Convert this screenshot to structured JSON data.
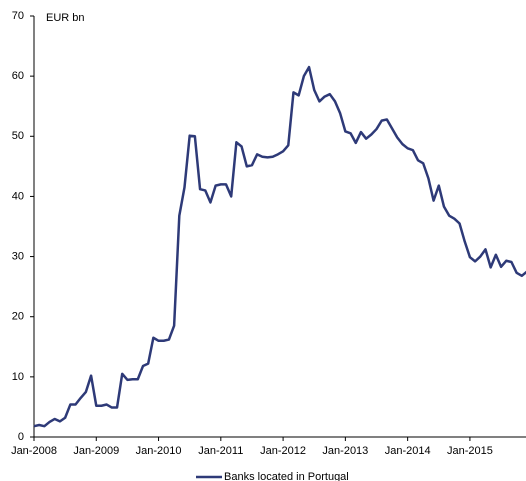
{
  "chart_data": {
    "type": "line",
    "y_label": "EUR bn",
    "categories": [
      "Jan-2008",
      null,
      null,
      null,
      null,
      null,
      null,
      null,
      null,
      null,
      null,
      null,
      "Jan-2009",
      null,
      null,
      null,
      null,
      null,
      null,
      null,
      null,
      null,
      null,
      null,
      "Jan-2010",
      null,
      null,
      null,
      null,
      null,
      null,
      null,
      null,
      null,
      null,
      null,
      "Jan-2011",
      null,
      null,
      null,
      null,
      null,
      null,
      null,
      null,
      null,
      null,
      null,
      "Jan-2012",
      null,
      null,
      null,
      null,
      null,
      null,
      null,
      null,
      null,
      null,
      null,
      "Jan-2013",
      null,
      null,
      null,
      null,
      null,
      null,
      null,
      null,
      null,
      null,
      null,
      "Jan-2014",
      null,
      null,
      null,
      null,
      null,
      null,
      null,
      null,
      null,
      null,
      null,
      "Jan-2015",
      null,
      null,
      null,
      null,
      null,
      null,
      null,
      null,
      null,
      null,
      null
    ],
    "series": [
      {
        "name": "Banks located in Portugal",
        "color": "#2e3a78",
        "values": [
          1.8,
          2.0,
          1.8,
          2.5,
          3.0,
          2.6,
          3.2,
          5.4,
          5.4,
          6.5,
          7.5,
          10.2,
          5.2,
          5.2,
          5.4,
          4.9,
          4.9,
          10.5,
          9.5,
          9.6,
          9.6,
          11.8,
          12.2,
          16.5,
          16.0,
          16.0,
          16.2,
          18.5,
          36.8,
          41.5,
          50.1,
          50.0,
          41.2,
          41.0,
          39.0,
          41.8,
          42.0,
          42.0,
          40.0,
          49.0,
          48.3,
          45.0,
          45.2,
          47.0,
          46.6,
          46.5,
          46.6,
          47.0,
          47.5,
          48.5,
          57.3,
          56.8,
          60.0,
          61.5,
          57.7,
          55.8,
          56.6,
          57.0,
          55.8,
          53.8,
          50.8,
          50.5,
          48.9,
          50.7,
          49.6,
          50.3,
          51.2,
          52.6,
          52.8,
          51.3,
          49.8,
          48.7,
          48.0,
          47.7,
          46.0,
          45.5,
          43.0,
          39.3,
          41.8,
          38.3,
          36.8,
          36.3,
          35.5,
          32.5,
          29.9,
          29.2,
          30.0,
          31.2,
          28.2,
          30.3,
          28.3,
          29.3,
          29.1,
          27.3,
          26.8,
          27.5
        ]
      }
    ],
    "ylim": [
      0,
      70
    ],
    "yticks": [
      0,
      10,
      20,
      30,
      40,
      50,
      60,
      70
    ],
    "grid": false,
    "legend": "bottom"
  }
}
